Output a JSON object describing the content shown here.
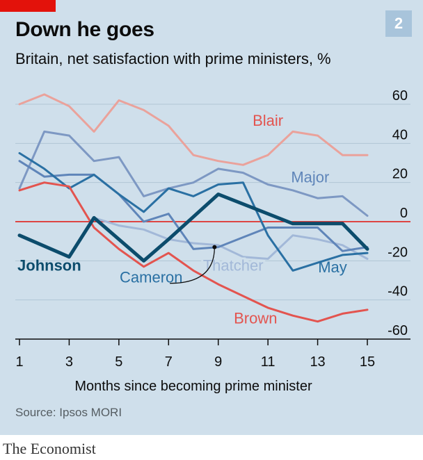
{
  "header": {
    "title": "Down he goes",
    "subtitle": "Britain, net satisfaction with prime ministers, %",
    "chart_number": "2"
  },
  "source": "Source: Ipsos MORI",
  "footer": "The Economist",
  "chart_data": {
    "type": "line",
    "title": "Down he goes",
    "subtitle": "Britain, net satisfaction with prime ministers, %",
    "xlabel": "Months since becoming prime minister",
    "ylabel": "",
    "xlim": [
      1,
      15
    ],
    "ylim": [
      -60,
      60
    ],
    "x_ticks": [
      1,
      3,
      5,
      7,
      9,
      11,
      13,
      15
    ],
    "y_ticks": [
      60,
      40,
      20,
      0,
      -20,
      -40,
      -60
    ],
    "grid": true,
    "zero_line": true,
    "series": [
      {
        "name": "Blair",
        "color": "#eaa29b",
        "width": 3,
        "x": [
          1,
          2,
          3,
          4,
          5,
          6,
          7,
          8,
          9,
          10,
          11,
          12,
          13,
          14,
          15
        ],
        "values": [
          60,
          65,
          59,
          46,
          62,
          57,
          49,
          34,
          31,
          29,
          34,
          46,
          44,
          34,
          34
        ]
      },
      {
        "name": "Major",
        "color": "#7d98c3",
        "width": 3,
        "x": [
          1,
          2,
          3,
          4,
          5,
          6,
          7,
          8,
          9,
          10,
          11,
          12,
          13,
          14,
          15
        ],
        "values": [
          17,
          46,
          44,
          31,
          33,
          13,
          17,
          20,
          27,
          25,
          19,
          16,
          12,
          13,
          3
        ]
      },
      {
        "name": "Thatcher",
        "color": "#a2b8d8",
        "width": 3,
        "x": [
          4,
          5,
          6,
          7,
          8,
          9,
          10,
          11,
          12,
          13,
          14,
          15
        ],
        "values": [
          2,
          -2,
          -4,
          -9,
          -11,
          -12,
          -18,
          -19,
          -7,
          -9,
          -12,
          -19
        ]
      },
      {
        "name": "Cameron",
        "color": "#5f85b9",
        "width": 3,
        "x": [
          1,
          2,
          3,
          4,
          5,
          6,
          7,
          8,
          9,
          10,
          11,
          12,
          13,
          14,
          15
        ],
        "values": [
          31,
          23,
          24,
          24,
          14,
          0,
          4,
          -14,
          -13,
          -8,
          -3,
          -3,
          -3,
          -15,
          -13
        ]
      },
      {
        "name": "May",
        "color": "#2a70a3",
        "width": 3,
        "x": [
          1,
          2,
          3,
          4,
          5,
          6,
          7,
          8,
          9,
          10,
          11,
          12,
          13,
          14,
          15
        ],
        "values": [
          35,
          27,
          17,
          24,
          14,
          5,
          17,
          13,
          19,
          20,
          -7,
          -25,
          -21,
          -17,
          -16
        ]
      },
      {
        "name": "Brown",
        "color": "#e3544f",
        "width": 3,
        "x": [
          1,
          2,
          3,
          4,
          5,
          6,
          7,
          8,
          9,
          10,
          11,
          12,
          13,
          14,
          15
        ],
        "values": [
          16,
          20,
          18,
          -3,
          -14,
          -23,
          -16,
          -25,
          -32,
          -38,
          -44,
          -48,
          -51,
          -47,
          -45
        ]
      },
      {
        "name": "Johnson",
        "color": "#0c4c6c",
        "width": 5,
        "x": [
          1,
          3,
          4,
          6,
          7,
          9,
          12,
          14,
          15
        ],
        "values": [
          -7,
          -18,
          2,
          -20,
          -9,
          14,
          -1,
          -1,
          -14
        ]
      }
    ],
    "labels": [
      {
        "text": "Blair",
        "series": "Blair",
        "x": 11,
        "y": 49,
        "color": "#e3544f"
      },
      {
        "text": "Major",
        "series": "Major",
        "x": 12.7,
        "y": 20,
        "color": "#5f85b9"
      },
      {
        "text": "Thatcher",
        "series": "Thatcher",
        "x": 9.6,
        "y": -25,
        "color": "#a2b8d8"
      },
      {
        "text": "Cameron",
        "series": "Cameron",
        "x": 6.3,
        "y": -31,
        "color": "#2a70a3"
      },
      {
        "text": "May",
        "series": "May",
        "x": 13.6,
        "y": -26,
        "color": "#2a70a3"
      },
      {
        "text": "Brown",
        "series": "Brown",
        "x": 10.5,
        "y": -52,
        "color": "#e3544f"
      },
      {
        "text": "Johnson",
        "series": "Johnson",
        "x": 2.2,
        "y": -25,
        "color": "#0c4c6c"
      }
    ]
  }
}
